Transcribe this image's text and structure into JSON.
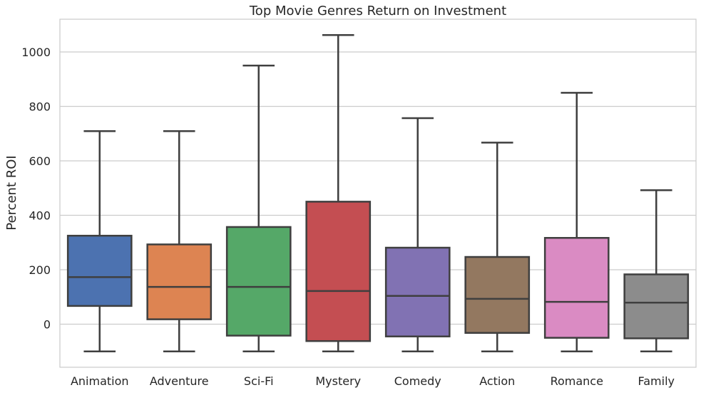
{
  "chart_data": {
    "type": "box",
    "title": "Top Movie Genres Return on Investment",
    "xlabel": "",
    "ylabel": "Percent ROI",
    "ylim": [
      -155,
      1120
    ],
    "yticks": [
      0,
      200,
      400,
      600,
      800,
      1000
    ],
    "grid": "horizontal",
    "categories": [
      "Animation",
      "Adventure",
      "Sci-Fi",
      "Mystery",
      "Comedy",
      "Action",
      "Romance",
      "Family"
    ],
    "colors": [
      "#4c72b0",
      "#dd8452",
      "#55a868",
      "#c44e52",
      "#8172b3",
      "#937860",
      "#da8bc3",
      "#8c8c8c"
    ],
    "boxes": [
      {
        "whisker_low": -100,
        "q1": 67,
        "median": 173,
        "q3": 325,
        "whisker_high": 709
      },
      {
        "whisker_low": -100,
        "q1": 18,
        "median": 137,
        "q3": 293,
        "whisker_high": 709
      },
      {
        "whisker_low": -100,
        "q1": -42,
        "median": 137,
        "q3": 357,
        "whisker_high": 950
      },
      {
        "whisker_low": -100,
        "q1": -62,
        "median": 122,
        "q3": 450,
        "whisker_high": 1062
      },
      {
        "whisker_low": -100,
        "q1": -45,
        "median": 104,
        "q3": 281,
        "whisker_high": 757
      },
      {
        "whisker_low": -100,
        "q1": -32,
        "median": 93,
        "q3": 247,
        "whisker_high": 667
      },
      {
        "whisker_low": -100,
        "q1": -50,
        "median": 82,
        "q3": 317,
        "whisker_high": 850
      },
      {
        "whisker_low": -100,
        "q1": -52,
        "median": 79,
        "q3": 183,
        "whisker_high": 492
      }
    ]
  }
}
